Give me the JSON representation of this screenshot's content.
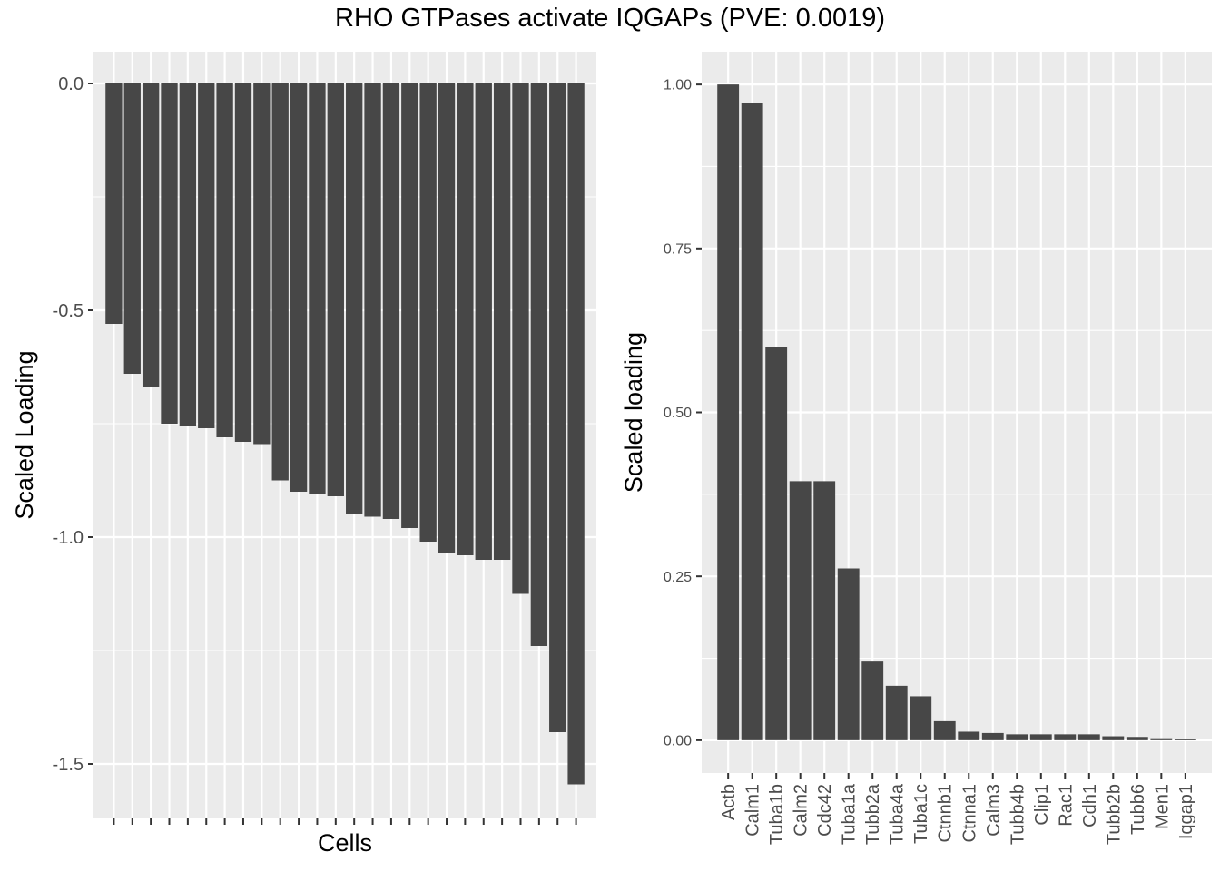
{
  "title": "RHO GTPases activate IQGAPs (PVE: 0.0019)",
  "chart_data": [
    {
      "type": "bar",
      "xlabel": "Cells",
      "ylabel": "Scaled Loading",
      "ylim": [
        -1.62,
        0.07
      ],
      "yticks": [
        0.0,
        -0.5,
        -1.0,
        -1.5
      ],
      "ytick_labels": [
        "0.0",
        "-0.5",
        "-1.0",
        "-1.5"
      ],
      "categories_labeled": false,
      "values": [
        -0.53,
        -0.64,
        -0.67,
        -0.75,
        -0.755,
        -0.76,
        -0.78,
        -0.79,
        -0.795,
        -0.875,
        -0.9,
        -0.905,
        -0.91,
        -0.95,
        -0.955,
        -0.96,
        -0.98,
        -1.01,
        -1.035,
        -1.04,
        -1.05,
        -1.05,
        -1.125,
        -1.24,
        -1.43,
        -1.545
      ],
      "bar_color": "#474747",
      "grid": true
    },
    {
      "type": "bar",
      "xlabel": "",
      "ylabel": "Scaled loading",
      "ylim": [
        -0.05,
        1.05
      ],
      "yticks": [
        0.0,
        0.25,
        0.5,
        0.75,
        1.0
      ],
      "ytick_labels": [
        "0.00",
        "0.25",
        "0.50",
        "0.75",
        "1.00"
      ],
      "categories": [
        "Actb",
        "Calm1",
        "Tuba1b",
        "Calm2",
        "Cdc42",
        "Tuba1a",
        "Tubb2a",
        "Tuba4a",
        "Tuba1c",
        "Ctnnb1",
        "Ctnna1",
        "Calm3",
        "Tubb4b",
        "Clip1",
        "Rac1",
        "Cdh1",
        "Tubb2b",
        "Tubb6",
        "Men1",
        "Iqgap1"
      ],
      "values": [
        1.0,
        0.972,
        0.6,
        0.395,
        0.395,
        0.262,
        0.12,
        0.083,
        0.067,
        0.029,
        0.013,
        0.011,
        0.009,
        0.009,
        0.009,
        0.009,
        0.006,
        0.005,
        0.003,
        0.002
      ],
      "bar_color": "#474747",
      "grid": true
    }
  ]
}
